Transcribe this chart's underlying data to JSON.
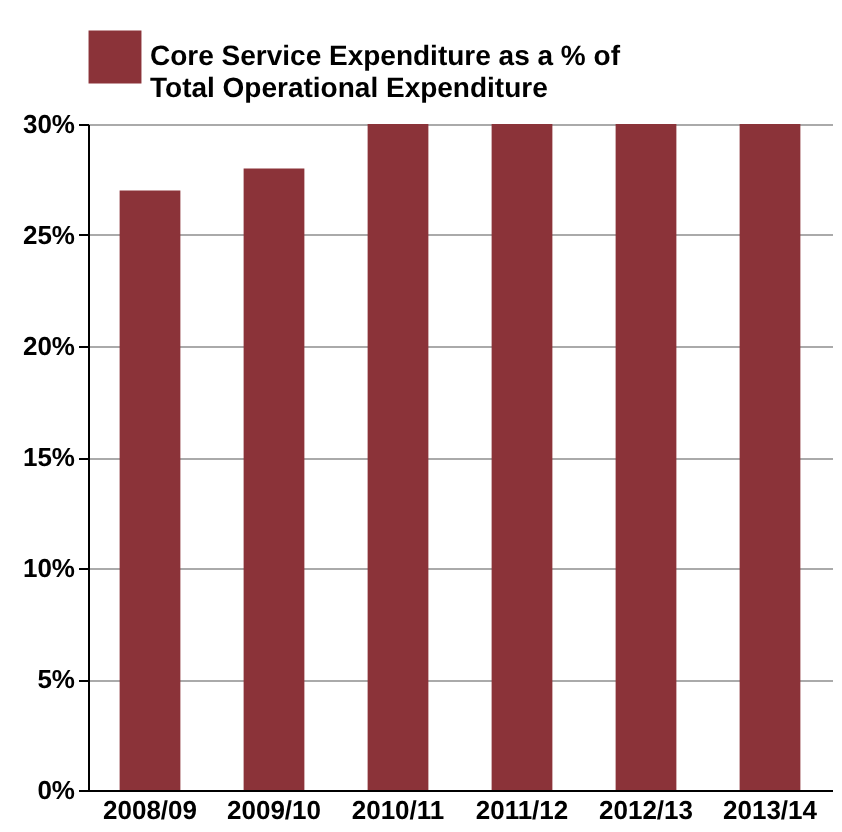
{
  "chart_data": {
    "type": "bar",
    "categories": [
      "2008/09",
      "2009/10",
      "2010/11",
      "2011/12",
      "2012/13",
      "2013/14"
    ],
    "series": [
      {
        "name": "Core Service Expenditure as a % of Total Operational Expenditure",
        "color": "#8b3339",
        "values": [
          27,
          28,
          30,
          30,
          30,
          30
        ]
      }
    ],
    "ylim": [
      0,
      30
    ],
    "yticks": [
      {
        "value": 0,
        "label": "0%"
      },
      {
        "value": 5,
        "label": "5%"
      },
      {
        "value": 10,
        "label": "10%"
      },
      {
        "value": 15,
        "label": "15%"
      },
      {
        "value": 20,
        "label": "20%"
      },
      {
        "value": 25,
        "label": "25%"
      },
      {
        "value": 30,
        "label": "30%"
      }
    ],
    "grid": "y",
    "legend": "top"
  }
}
